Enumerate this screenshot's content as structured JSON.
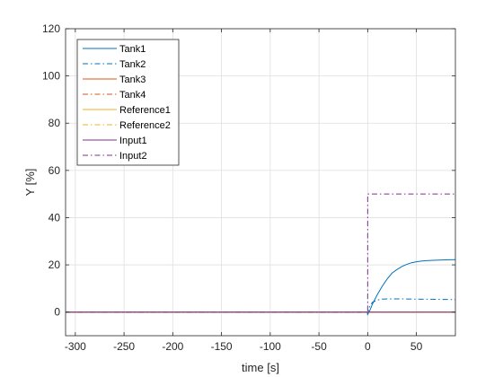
{
  "chart_data": {
    "type": "line",
    "xlabel": "time [s]",
    "ylabel": "Y [%]",
    "xlim": [
      -310,
      90
    ],
    "ylim": [
      -10,
      120
    ],
    "xticks": [
      -300,
      -250,
      -200,
      -150,
      -100,
      -50,
      0,
      50
    ],
    "yticks": [
      0,
      20,
      40,
      60,
      80,
      100,
      120
    ],
    "grid": true,
    "legend_position": "top-left",
    "series": [
      {
        "name": "Tank1",
        "color": "#0072BD",
        "style": "solid",
        "points": [
          [
            -310,
            0
          ],
          [
            -0.5,
            0
          ],
          [
            0,
            -1
          ],
          [
            2,
            0.5
          ],
          [
            5,
            3.5
          ],
          [
            10,
            7.5
          ],
          [
            15,
            11
          ],
          [
            20,
            14
          ],
          [
            25,
            16.5
          ],
          [
            30,
            18
          ],
          [
            35,
            19.3
          ],
          [
            40,
            20.2
          ],
          [
            45,
            20.9
          ],
          [
            50,
            21.3
          ],
          [
            55,
            21.6
          ],
          [
            60,
            21.8
          ],
          [
            70,
            22
          ],
          [
            80,
            22.1
          ],
          [
            90,
            22.2
          ]
        ]
      },
      {
        "name": "Tank2",
        "color": "#0072BD",
        "style": "dashdot",
        "points": [
          [
            -310,
            0
          ],
          [
            -0.5,
            0
          ],
          [
            0,
            -1
          ],
          [
            2,
            2.5
          ],
          [
            5,
            4.2
          ],
          [
            10,
            5.1
          ],
          [
            15,
            5.5
          ],
          [
            20,
            5.6
          ],
          [
            30,
            5.6
          ],
          [
            50,
            5.5
          ],
          [
            70,
            5.4
          ],
          [
            90,
            5.3
          ]
        ]
      },
      {
        "name": "Tank3",
        "color": "#D95319",
        "style": "solid",
        "points": [
          [
            -310,
            0
          ],
          [
            90,
            0
          ]
        ]
      },
      {
        "name": "Tank4",
        "color": "#D95319",
        "style": "dashdot",
        "points": [
          [
            -310,
            0
          ],
          [
            90,
            0
          ]
        ]
      },
      {
        "name": "Reference1",
        "color": "#EDB120",
        "style": "solid",
        "points": [
          [
            -310,
            0
          ],
          [
            90,
            0
          ]
        ]
      },
      {
        "name": "Reference2",
        "color": "#EDB120",
        "style": "dashdot",
        "points": [
          [
            -310,
            0
          ],
          [
            90,
            0
          ]
        ]
      },
      {
        "name": "Input1",
        "color": "#7E2F8E",
        "style": "solid",
        "points": [
          [
            -310,
            0
          ],
          [
            90,
            0
          ]
        ]
      },
      {
        "name": "Input2",
        "color": "#7E2F8E",
        "style": "dashdot",
        "points": [
          [
            -310,
            0
          ],
          [
            0,
            0
          ],
          [
            0,
            50
          ],
          [
            90,
            50
          ]
        ]
      }
    ]
  }
}
